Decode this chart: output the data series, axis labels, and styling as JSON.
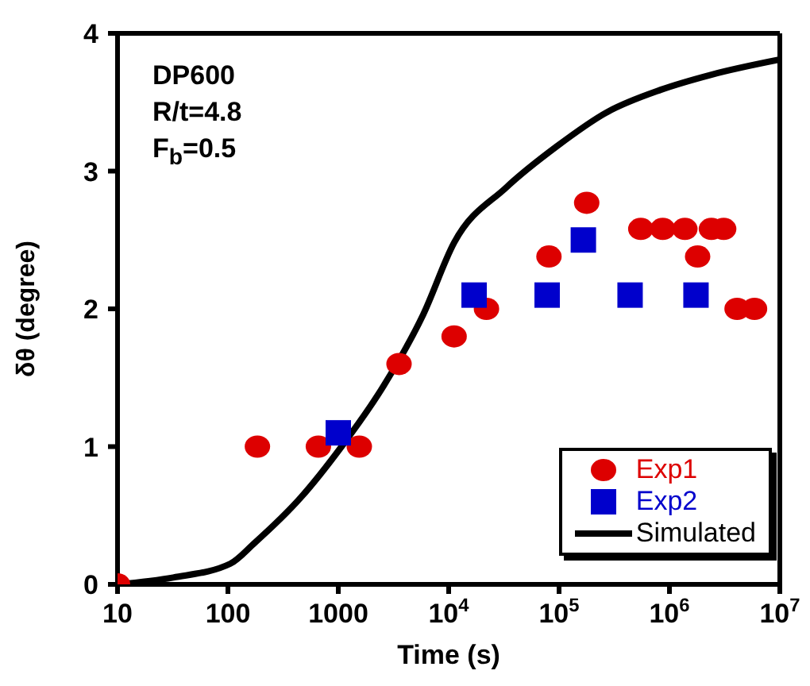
{
  "chart_data": {
    "type": "scatter",
    "xlabel": "Time (s)",
    "ylabel": "δθ (degree)",
    "log": "x",
    "xlim": [
      10,
      10000000
    ],
    "ylim": [
      0,
      4
    ],
    "xticks": [
      10,
      100,
      1000,
      {
        "value": 10000,
        "label": "10$^{4}$"
      },
      {
        "value": 100000,
        "label": "10$^{5}$"
      },
      {
        "value": 1000000,
        "label": "10$^{6}$"
      },
      {
        "value": 10000000,
        "label": "10$^{7}$"
      }
    ],
    "yticks": [
      0,
      1,
      2,
      3,
      4
    ],
    "grid": false,
    "legend": "bottom right",
    "annotations": [
      "DP600",
      "R/t=4.8",
      "F$_{b}$=0.5"
    ],
    "series": [
      {
        "name": "Exp1",
        "type": "scatter",
        "marker": "circle",
        "color": "#dd0000",
        "x": [
          10,
          185,
          660,
          1550,
          3550,
          11200,
          22000,
          81000,
          178000,
          550000,
          870000,
          1380000,
          1800000,
          2400000,
          3100000,
          4100000,
          5900000
        ],
        "values": [
          0,
          1.0,
          1.0,
          1.0,
          1.6,
          1.8,
          2.0,
          2.38,
          2.77,
          2.58,
          2.58,
          2.58,
          2.38,
          2.58,
          2.58,
          2.0,
          2.0
        ]
      },
      {
        "name": "Exp2",
        "type": "scatter",
        "marker": "square",
        "color": "#0000cc",
        "x": [
          1000,
          17000,
          78000,
          166000,
          440000,
          1740000
        ],
        "values": [
          1.1,
          2.1,
          2.1,
          2.5,
          2.1,
          2.1
        ]
      },
      {
        "name": "Simulated",
        "type": "line",
        "marker": "none",
        "line_style": "solid",
        "color": "#000000",
        "x": [
          10,
          32,
          105,
          174,
          457,
          1070,
          2570,
          5890,
          11200,
          33100,
          95500,
          275000,
          832000,
          2400000,
          10000000
        ],
        "values": [
          0,
          0.05,
          0.15,
          0.3,
          0.63,
          1.0,
          1.44,
          1.96,
          2.48,
          2.88,
          3.18,
          3.43,
          3.59,
          3.7,
          3.81
        ]
      }
    ]
  }
}
